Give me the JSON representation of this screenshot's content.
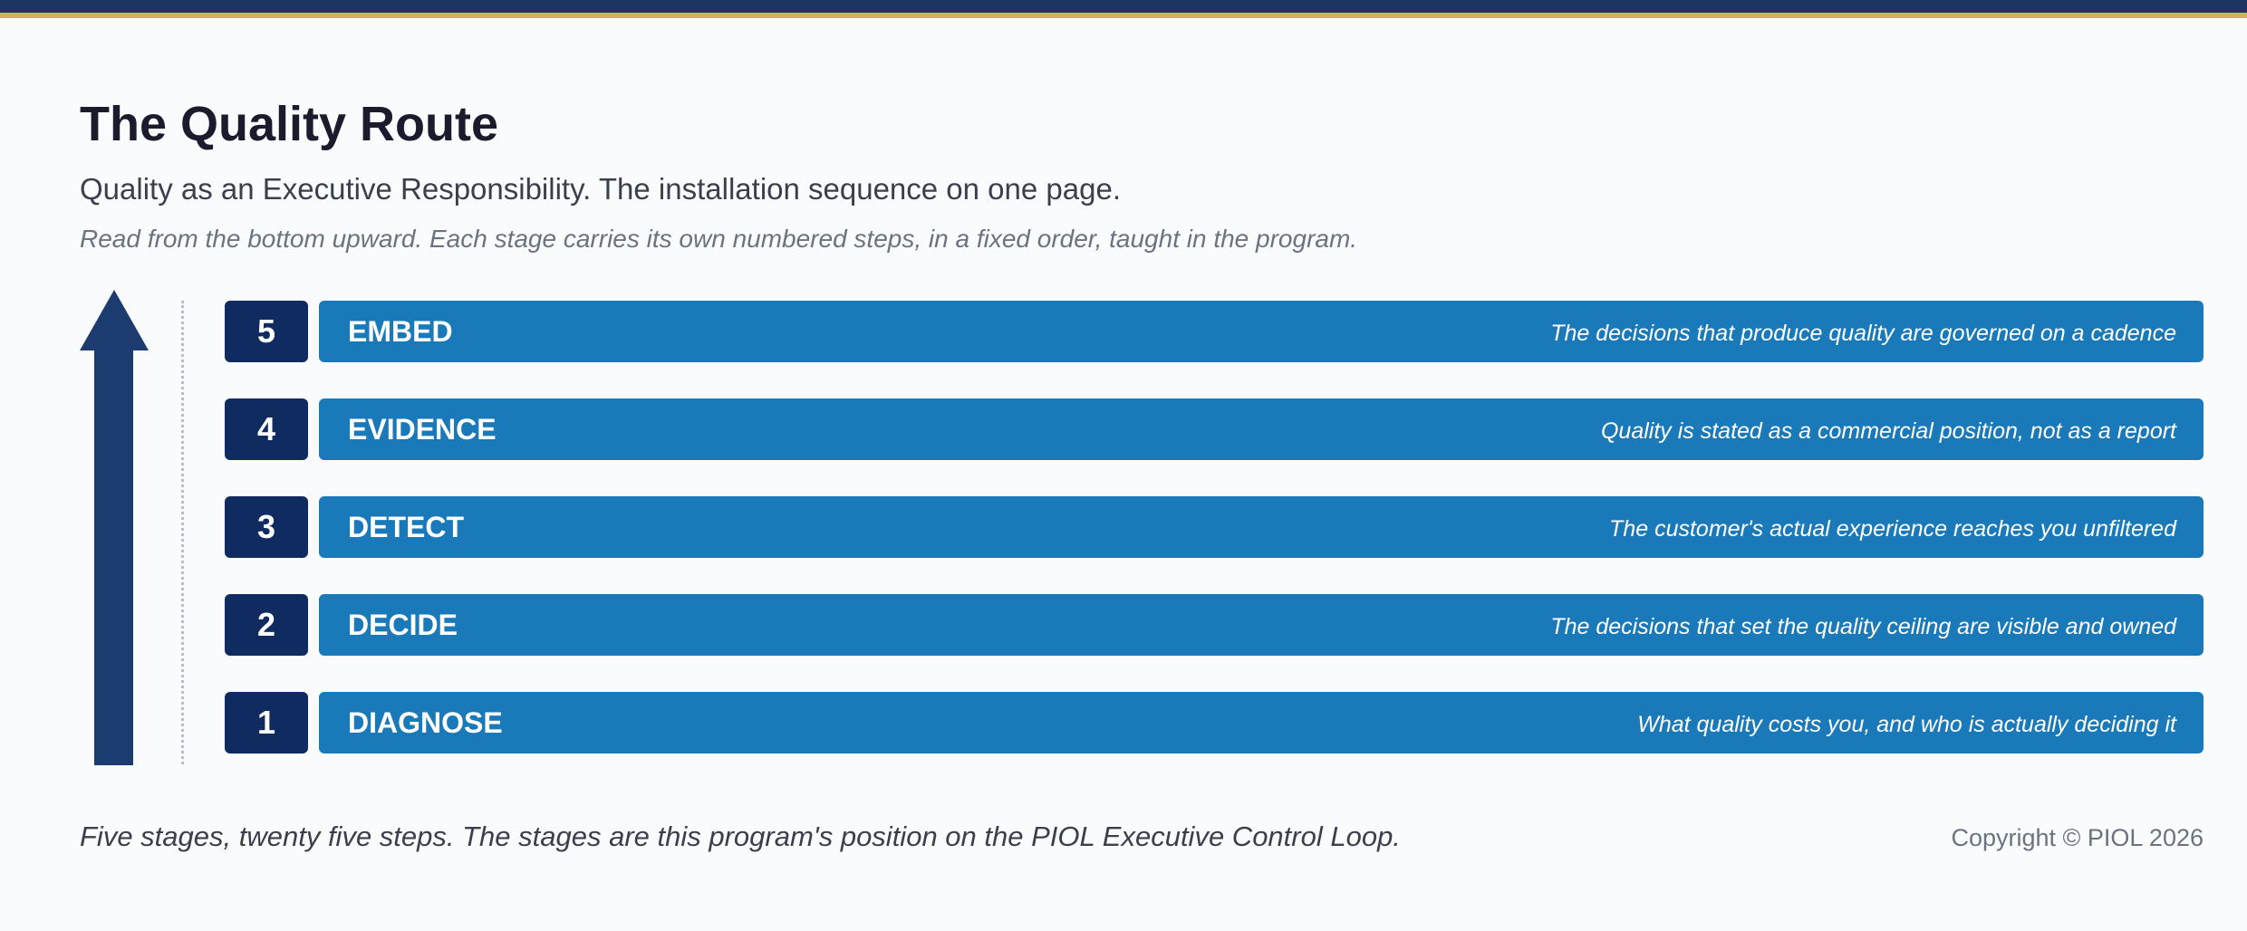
{
  "colors": {
    "top_bar": "#1c3563",
    "top_accent": "#d3b25c",
    "number_box": "#0f2b60",
    "stage_bar": "#1a7ab9",
    "arrow": "#1c3b6e"
  },
  "header": {
    "title": "The Quality Route",
    "subtitle": "Quality as an Executive Responsibility. The installation sequence on one page.",
    "instruction": "Read from the bottom upward. Each stage carries its own numbered steps, in a fixed order, taught in the program."
  },
  "stages": [
    {
      "number": "5",
      "name": "EMBED",
      "description": "The decisions that produce quality are governed on a cadence"
    },
    {
      "number": "4",
      "name": "EVIDENCE",
      "description": "Quality is stated as a commercial position, not as a report"
    },
    {
      "number": "3",
      "name": "DETECT",
      "description": "The customer's actual experience reaches you unfiltered"
    },
    {
      "number": "2",
      "name": "DECIDE",
      "description": "The decisions that set the quality ceiling are visible and owned"
    },
    {
      "number": "1",
      "name": "DIAGNOSE",
      "description": "What quality costs you, and who is actually deciding it"
    }
  ],
  "footer": {
    "note": "Five stages, twenty five steps. The stages are this program's position on the PIOL Executive Control Loop.",
    "copyright": "Copyright © PIOL 2026"
  }
}
